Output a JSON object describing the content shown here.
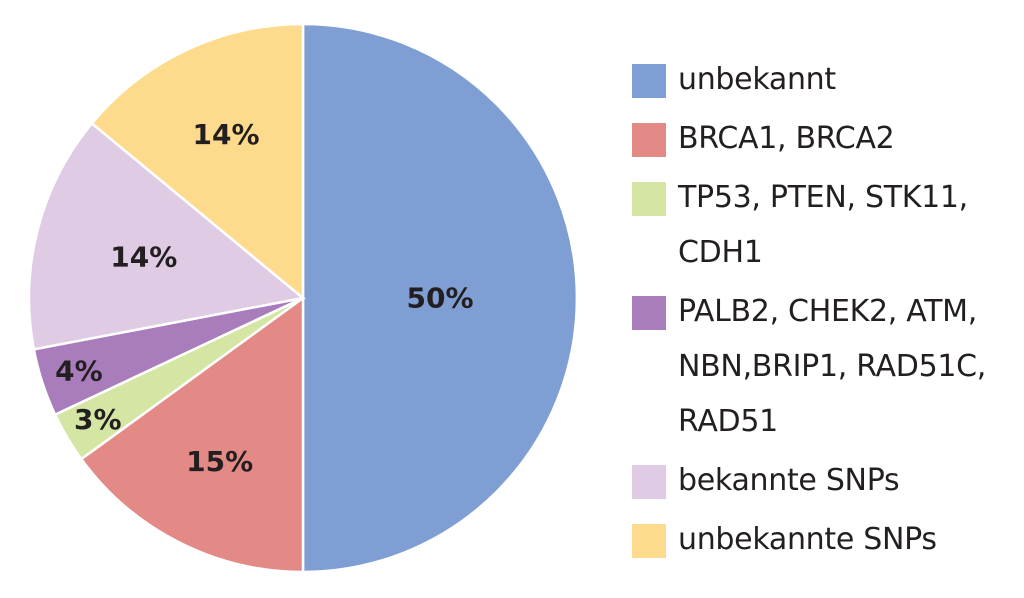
{
  "chart_data": {
    "type": "pie",
    "slices": [
      {
        "label": "unbekannt",
        "value": 50,
        "display": "50%",
        "color": "#7f9fd4"
      },
      {
        "label": "BRCA1, BRCA2",
        "value": 15,
        "display": "15%",
        "color": "#e38a86"
      },
      {
        "label": "TP53, PTEN, STK11, CDH1",
        "value": 3,
        "display": "3%",
        "color": "#d5e6a4"
      },
      {
        "label": "PALB2, CHEK2, ATM, NBN,BRIP1, RAD51C, RAD51",
        "value": 4,
        "display": "4%",
        "color": "#a97cbb"
      },
      {
        "label": "bekannte SNPs",
        "value": 14,
        "display": "14%",
        "color": "#dfcbe4"
      },
      {
        "label": "unbekannte SNPs",
        "value": 14,
        "display": "14%",
        "color": "#fedb8c"
      }
    ],
    "legend_position": "right"
  },
  "legend": [
    {
      "lines": [
        "unbekannt"
      ],
      "color": "#7f9fd4"
    },
    {
      "lines": [
        "BRCA1, BRCA2"
      ],
      "color": "#e38a86"
    },
    {
      "lines": [
        "TP53, PTEN, STK11,",
        "CDH1"
      ],
      "color": "#d5e6a4"
    },
    {
      "lines": [
        "PALB2, CHEK2, ATM,",
        "NBN,BRIP1, RAD51C,",
        "RAD51"
      ],
      "color": "#a97cbb"
    },
    {
      "lines": [
        "bekannte SNPs"
      ],
      "color": "#dfcbe4"
    },
    {
      "lines": [
        "unbekannte SNPs"
      ],
      "color": "#fedb8c"
    }
  ]
}
